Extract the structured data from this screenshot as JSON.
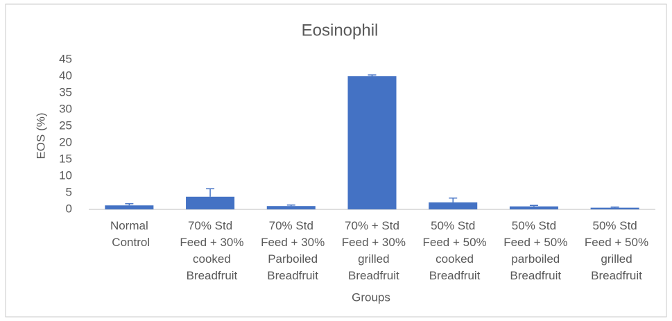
{
  "chart_data": {
    "type": "bar",
    "title": "Eosinophil",
    "x_label": "Groups",
    "y_label": "EOS (%)",
    "categories": [
      "Normal Control",
      "70% Std Feed + 30% cooked Breadfruit",
      "70% Std Feed + 30% Parboiled Breadfruit",
      "70% + Std Feed + 30% grilled Breadfruit",
      "50% Std Feed + 50% cooked Breadfruit",
      "50% Std Feed + 50% parboiled Breadfruit",
      "50% Std Feed + 50% grilled Breadfruit"
    ],
    "values": [
      1.2,
      3.8,
      1.0,
      40.0,
      2.1,
      0.9,
      0.5
    ],
    "errors": [
      0.5,
      2.4,
      0.3,
      0.4,
      1.3,
      0.3,
      0.2
    ],
    "color": "#4472c4",
    "ylim": [
      0,
      45
    ],
    "yticks": [
      0,
      5,
      10,
      15,
      20,
      25,
      30,
      35,
      40,
      45
    ],
    "grid": false
  }
}
